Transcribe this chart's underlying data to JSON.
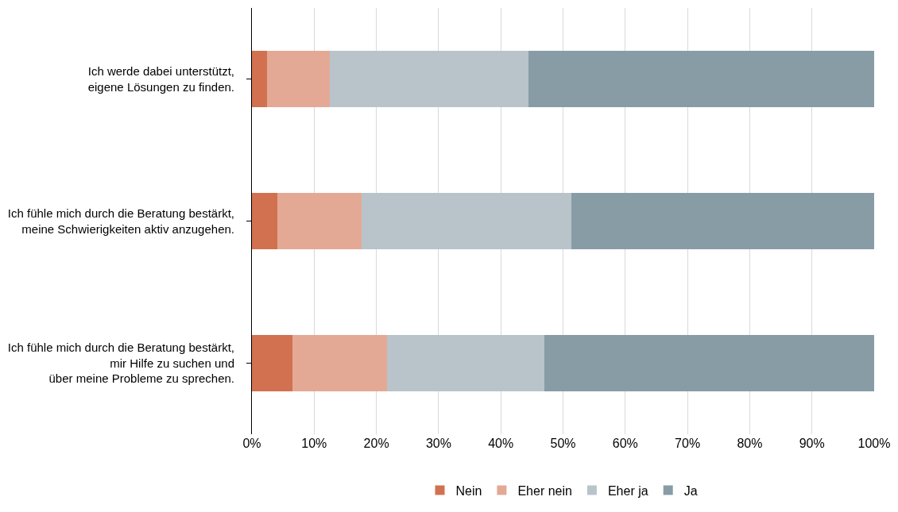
{
  "chart_data": {
    "type": "bar",
    "orientation": "horizontal",
    "stacked": true,
    "categories": [
      "Ich werde dabei unterstützt,\neigene Lösungen zu finden.",
      "Ich fühle mich durch die Beratung bestärkt,\nmeine Schwierigkeiten aktiv anzugehen.",
      "Ich fühle mich durch die Beratung bestärkt,\nmir Hilfe zu suchen und\nüber meine Probleme zu sprechen."
    ],
    "series": [
      {
        "name": "Nein",
        "color": "#d1714f",
        "values": [
          2.4,
          4.1,
          6.5
        ]
      },
      {
        "name": "Eher nein",
        "color": "#e3a995",
        "values": [
          10.1,
          13.5,
          15.2
        ]
      },
      {
        "name": "Eher ja",
        "color": "#b8c4ca",
        "values": [
          32.0,
          33.7,
          25.3
        ]
      },
      {
        "name": "Ja",
        "color": "#889ca6",
        "values": [
          55.5,
          48.7,
          53.0
        ]
      }
    ],
    "xlim": [
      0,
      100
    ],
    "xticks": [
      {
        "value": 0,
        "label": "0%"
      },
      {
        "value": 10,
        "label": "10%"
      },
      {
        "value": 20,
        "label": "20%"
      },
      {
        "value": 30,
        "label": "30%"
      },
      {
        "value": 40,
        "label": "40%"
      },
      {
        "value": 50,
        "label": "50%"
      },
      {
        "value": 60,
        "label": "60%"
      },
      {
        "value": 70,
        "label": "70%"
      },
      {
        "value": 80,
        "label": "80%"
      },
      {
        "value": 90,
        "label": "90%"
      },
      {
        "value": 100,
        "label": "100%"
      }
    ],
    "grid": "x",
    "legend": "bottom"
  }
}
